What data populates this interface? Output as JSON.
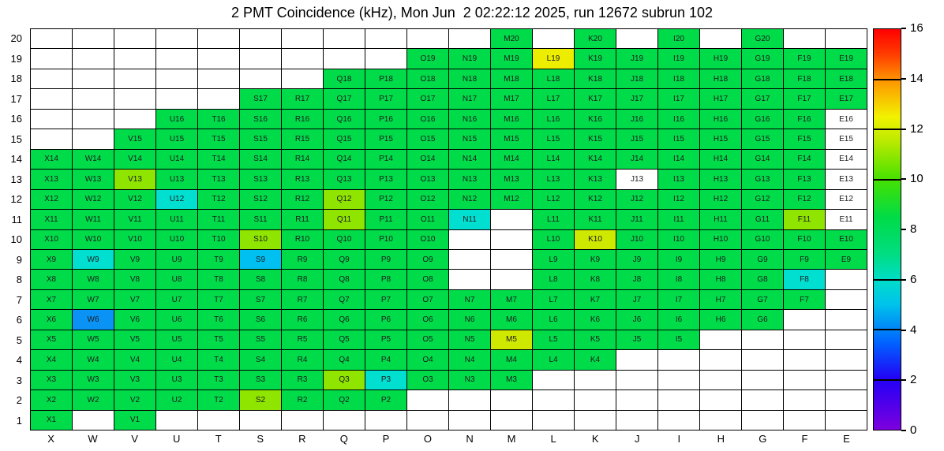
{
  "title": "2 PMT Coincidence (kHz), Mon Jun  2 02:22:12 2025, run 12672 subrun 102",
  "chart_data": {
    "type": "heatmap",
    "title": "2 PMT Coincidence (kHz), Mon Jun  2 02:22:12 2025, run 12672 subrun 102",
    "xlabel": "",
    "ylabel": "",
    "x_categories": [
      "X",
      "W",
      "V",
      "U",
      "T",
      "S",
      "R",
      "Q",
      "P",
      "O",
      "N",
      "M",
      "L",
      "K",
      "J",
      "I",
      "H",
      "G",
      "F",
      "E"
    ],
    "y_categories_top_to_bottom": [
      20,
      19,
      18,
      17,
      16,
      15,
      14,
      13,
      12,
      11,
      10,
      9,
      8,
      7,
      6,
      5,
      4,
      3,
      2,
      1
    ],
    "colorbar": {
      "unit": "kHz",
      "min": 0,
      "max": 16,
      "ticks": [
        0,
        2,
        4,
        6,
        8,
        10,
        12,
        14,
        16
      ],
      "divider_lines": [
        14,
        12,
        10,
        6,
        4,
        2
      ],
      "stops": [
        {
          "v": 0,
          "hex": "#7d00de"
        },
        {
          "v": 2,
          "hex": "#2300f5"
        },
        {
          "v": 3.5,
          "hex": "#0064ff"
        },
        {
          "v": 5,
          "hex": "#00c3eb"
        },
        {
          "v": 6,
          "hex": "#00ddc8"
        },
        {
          "v": 7,
          "hex": "#00dd82"
        },
        {
          "v": 8.5,
          "hex": "#00dc46"
        },
        {
          "v": 10,
          "hex": "#46e100"
        },
        {
          "v": 11.5,
          "hex": "#b9ea00"
        },
        {
          "v": 12.5,
          "hex": "#f2f200"
        },
        {
          "v": 14,
          "hex": "#ff9100"
        },
        {
          "v": 15,
          "hex": "#ff3c00"
        },
        {
          "v": 16,
          "hex": "#ff0000"
        }
      ]
    },
    "palette": {
      "g": {
        "name": "green",
        "hex": "#00db4a",
        "kHz_estimate": 8.5
      },
      "yg": {
        "name": "yellow-green",
        "hex": "#8fe400",
        "kHz_estimate": 10.5
      },
      "my": {
        "name": "green-yellow",
        "hex": "#cfe800",
        "kHz_estimate": 11.5
      },
      "y": {
        "name": "yellow",
        "hex": "#eded00",
        "kHz_estimate": 12.2
      },
      "c": {
        "name": "cyan",
        "hex": "#00dfd0",
        "kHz_estimate": 5.5
      },
      "cb": {
        "name": "light-blue",
        "hex": "#00c0f2",
        "kHz_estimate": 4.6
      },
      "b": {
        "name": "blue",
        "hex": "#0a93f5",
        "kHz_estimate": 3.6
      },
      "w": {
        "name": "white-no-fill",
        "hex": "#ffffff",
        "kHz_estimate": null
      }
    },
    "cell_value_note": "Cell rates estimated from fill color against the 0-16 kHz colorbar; empty strings are unfilled grid positions.",
    "rows": [
      {
        "y": 20,
        "cells": [
          "",
          "",
          "",
          "",
          "",
          "",
          "",
          "",
          "",
          "",
          "",
          "M20:g",
          "",
          "K20:g",
          "",
          "I20:g",
          "",
          "G20:g",
          "",
          ""
        ]
      },
      {
        "y": 19,
        "cells": [
          "",
          "",
          "",
          "",
          "",
          "",
          "",
          "",
          "",
          "O19:g",
          "N19:g",
          "M19:g",
          "L19:y",
          "K19:g",
          "J19:g",
          "I19:g",
          "H19:g",
          "G19:g",
          "F19:g",
          "E19:g"
        ]
      },
      {
        "y": 18,
        "cells": [
          "",
          "",
          "",
          "",
          "",
          "",
          "",
          "Q18:g",
          "P18:g",
          "O18:g",
          "N18:g",
          "M18:g",
          "L18:g",
          "K18:g",
          "J18:g",
          "I18:g",
          "H18:g",
          "G18:g",
          "F18:g",
          "E18:g"
        ]
      },
      {
        "y": 17,
        "cells": [
          "",
          "",
          "",
          "",
          "",
          "S17:g",
          "R17:g",
          "Q17:g",
          "P17:g",
          "O17:g",
          "N17:g",
          "M17:g",
          "L17:g",
          "K17:g",
          "J17:g",
          "I17:g",
          "H17:g",
          "G17:g",
          "F17:g",
          "E17:g"
        ]
      },
      {
        "y": 16,
        "cells": [
          "",
          "",
          "",
          "U16:g",
          "T16:g",
          "S16:g",
          "R16:g",
          "Q16:g",
          "P16:g",
          "O16:g",
          "N16:g",
          "M16:g",
          "L16:g",
          "K16:g",
          "J16:g",
          "I16:g",
          "H16:g",
          "G16:g",
          "F16:g",
          "E16:w"
        ]
      },
      {
        "y": 15,
        "cells": [
          "",
          "",
          "V15:g",
          "U15:g",
          "T15:g",
          "S15:g",
          "R15:g",
          "Q15:g",
          "P15:g",
          "O15:g",
          "N15:g",
          "M15:g",
          "L15:g",
          "K15:g",
          "J15:g",
          "I15:g",
          "H15:g",
          "G15:g",
          "F15:g",
          "E15:w"
        ]
      },
      {
        "y": 14,
        "cells": [
          "X14:g",
          "W14:g",
          "V14:g",
          "U14:g",
          "T14:g",
          "S14:g",
          "R14:g",
          "Q14:g",
          "P14:g",
          "O14:g",
          "N14:g",
          "M14:g",
          "L14:g",
          "K14:g",
          "J14:g",
          "I14:g",
          "H14:g",
          "G14:g",
          "F14:g",
          "E14:w"
        ]
      },
      {
        "y": 13,
        "cells": [
          "X13:g",
          "W13:g",
          "V13:yg",
          "U13:g",
          "T13:g",
          "S13:g",
          "R13:g",
          "Q13:g",
          "P13:g",
          "O13:g",
          "N13:g",
          "M13:g",
          "L13:g",
          "K13:g",
          "J13:w",
          "I13:g",
          "H13:g",
          "G13:g",
          "F13:g",
          "E13:w"
        ]
      },
      {
        "y": 12,
        "cells": [
          "X12:g",
          "W12:g",
          "V12:g",
          "U12:c",
          "T12:g",
          "S12:g",
          "R12:g",
          "Q12:yg",
          "P12:g",
          "O12:g",
          "N12:g",
          "M12:g",
          "L12:g",
          "K12:g",
          "J12:g",
          "I12:g",
          "H12:g",
          "G12:g",
          "F12:g",
          "E12:w"
        ]
      },
      {
        "y": 11,
        "cells": [
          "X11:g",
          "W11:g",
          "V11:g",
          "U11:g",
          "T11:g",
          "S11:g",
          "R11:g",
          "Q11:yg",
          "P11:g",
          "O11:g",
          "N11:c",
          "",
          "L11:g",
          "K11:g",
          "J11:g",
          "I11:g",
          "H11:g",
          "G11:g",
          "F11:yg",
          "E11:w"
        ]
      },
      {
        "y": 10,
        "cells": [
          "X10:g",
          "W10:g",
          "V10:g",
          "U10:g",
          "T10:g",
          "S10:yg",
          "R10:g",
          "Q10:g",
          "P10:g",
          "O10:g",
          "",
          "",
          "L10:g",
          "K10:my",
          "J10:g",
          "I10:g",
          "H10:g",
          "G10:g",
          "F10:g",
          "E10:g"
        ]
      },
      {
        "y": 9,
        "cells": [
          "X9:g",
          "W9:c",
          "V9:g",
          "U9:g",
          "T9:g",
          "S9:cb",
          "R9:g",
          "Q9:g",
          "P9:g",
          "O9:g",
          "",
          "",
          "L9:g",
          "K9:g",
          "J9:g",
          "I9:g",
          "H9:g",
          "G9:g",
          "F9:g",
          "E9:g"
        ]
      },
      {
        "y": 8,
        "cells": [
          "X8:g",
          "W8:g",
          "V8:g",
          "U8:g",
          "T8:g",
          "S8:g",
          "R8:g",
          "Q8:g",
          "P8:g",
          "O8:g",
          "",
          "",
          "L8:g",
          "K8:g",
          "J8:g",
          "I8:g",
          "H8:g",
          "G8:g",
          "F8:c",
          ""
        ]
      },
      {
        "y": 7,
        "cells": [
          "X7:g",
          "W7:g",
          "V7:g",
          "U7:g",
          "T7:g",
          "S7:g",
          "R7:g",
          "Q7:g",
          "P7:g",
          "O7:g",
          "N7:g",
          "M7:g",
          "L7:g",
          "K7:g",
          "J7:g",
          "I7:g",
          "H7:g",
          "G7:g",
          "F7:g",
          ""
        ]
      },
      {
        "y": 6,
        "cells": [
          "X6:g",
          "W6:b",
          "V6:g",
          "U6:g",
          "T6:g",
          "S6:g",
          "R6:g",
          "Q6:g",
          "P6:g",
          "O6:g",
          "N6:g",
          "M6:g",
          "L6:g",
          "K6:g",
          "J6:g",
          "I6:g",
          "H6:g",
          "G6:g",
          "",
          ""
        ]
      },
      {
        "y": 5,
        "cells": [
          "X5:g",
          "W5:g",
          "V5:g",
          "U5:g",
          "T5:g",
          "S5:g",
          "R5:g",
          "Q5:g",
          "P5:g",
          "O5:g",
          "N5:g",
          "M5:my",
          "L5:g",
          "K5:g",
          "J5:g",
          "I5:g",
          "",
          "",
          "",
          ""
        ]
      },
      {
        "y": 4,
        "cells": [
          "X4:g",
          "W4:g",
          "V4:g",
          "U4:g",
          "T4:g",
          "S4:g",
          "R4:g",
          "Q4:g",
          "P4:g",
          "O4:g",
          "N4:g",
          "M4:g",
          "L4:g",
          "K4:g",
          "",
          "",
          "",
          "",
          "",
          ""
        ]
      },
      {
        "y": 3,
        "cells": [
          "X3:g",
          "W3:g",
          "V3:g",
          "U3:g",
          "T3:g",
          "S3:g",
          "R3:g",
          "Q3:yg",
          "P3:c",
          "O3:g",
          "N3:g",
          "M3:g",
          "",
          "",
          "",
          "",
          "",
          "",
          "",
          ""
        ]
      },
      {
        "y": 2,
        "cells": [
          "X2:g",
          "W2:g",
          "V2:g",
          "U2:g",
          "T2:g",
          "S2:yg",
          "R2:g",
          "Q2:g",
          "P2:g",
          "",
          "",
          "",
          "",
          "",
          "",
          "",
          "",
          "",
          "",
          ""
        ]
      },
      {
        "y": 1,
        "cells": [
          "X1:g",
          "",
          "V1:g",
          "",
          "",
          "",
          "",
          "",
          "",
          "",
          "",
          "",
          "",
          "",
          "",
          "",
          "",
          "",
          "",
          ""
        ]
      }
    ]
  }
}
